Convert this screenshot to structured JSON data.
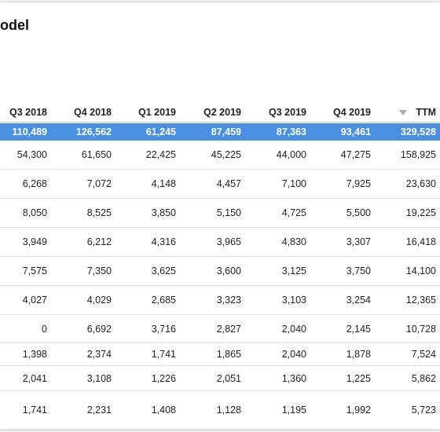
{
  "header": {
    "title": "odel"
  },
  "table": {
    "columns": [
      "Q3 2018",
      "Q4 2018",
      "Q1 2019",
      "Q2 2019",
      "Q3 2019",
      "Q4 2019",
      "TTM"
    ],
    "rows": [
      [
        "110,489",
        "126,562",
        "61,245",
        "87,459",
        "87,363",
        "93,461",
        "329,528"
      ],
      [
        "54,300",
        "61,650",
        "22,425",
        "45,225",
        "44,000",
        "47,275",
        "158,925"
      ],
      [
        "6,268",
        "7,072",
        "4,148",
        "4,457",
        "7,100",
        "7,925",
        "23,630"
      ],
      [
        "8,050",
        "8,525",
        "3,850",
        "5,150",
        "4,725",
        "5,500",
        "19,225"
      ],
      [
        "3,949",
        "6,212",
        "4,316",
        "3,965",
        "4,830",
        "3,307",
        "16,418"
      ],
      [
        "7,575",
        "7,350",
        "3,625",
        "3,600",
        "3,125",
        "3,750",
        "14,100"
      ],
      [
        "4,027",
        "4,029",
        "2,685",
        "3,323",
        "3,103",
        "3,254",
        "12,365"
      ],
      [
        "0",
        "6,692",
        "3,716",
        "2,827",
        "2,040",
        "2,145",
        "10,728"
      ],
      [
        "1,398",
        "2,374",
        "1,741",
        "1,865",
        "2,040",
        "1,878",
        "7,524"
      ],
      [
        "2,041",
        "3,108",
        "1,226",
        "2,051",
        "1,360",
        "1,225",
        "5,862"
      ],
      [
        "1,741",
        "2,231",
        "1,408",
        "1,128",
        "1,195",
        "1,992",
        "5,723"
      ]
    ]
  }
}
